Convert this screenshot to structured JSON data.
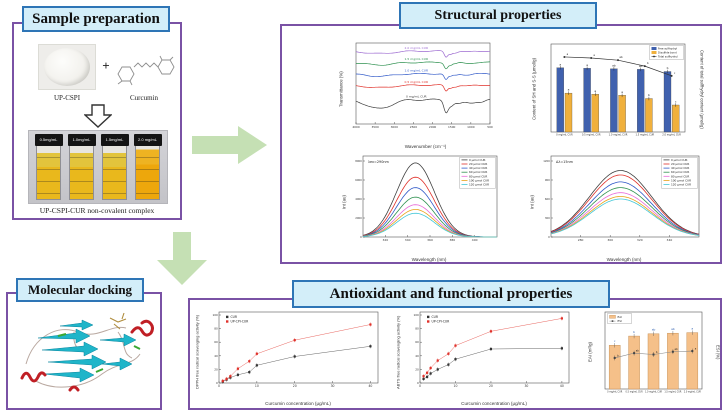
{
  "panels": {
    "sample_preparation": {
      "title": "Sample preparation",
      "powder_label": "UP-CSPI",
      "plus_sign": "+",
      "curcumin_label": "Curcumin",
      "vial_labels": [
        "0.5mg/mL",
        "1.0mg/mL",
        "1.5mg/mL",
        "2.0 mg/mL"
      ],
      "caption": "UP-CSPI-CUR non-covalent complex"
    },
    "structural_properties": {
      "title": "Structural properties"
    },
    "molecular_docking": {
      "title": "Molecular docking"
    },
    "antioxidant": {
      "title": "Antioxidant and functional properties"
    }
  },
  "colors": {
    "panel_border": "#7a52a5",
    "title_fill": "#d3eef9",
    "title_border": "#2e75b6",
    "arrow_green": "#c5e0b4"
  },
  "chart_data": [
    {
      "type": "line",
      "render": "ftir",
      "xlabel": "Wavenumber (cm⁻¹)",
      "ylabel": "Transmittance (%)",
      "xticks": [
        "4000",
        "3500",
        "3000",
        "2500",
        "2000",
        "1500",
        "1000",
        "500"
      ],
      "x_axis_reversed": true,
      "series": [
        {
          "name": "2.0 mg/mL CUR",
          "color": "#9d6bd1",
          "baseline_pos": 0.1
        },
        {
          "name": "1.5 mg/mL CUR",
          "color": "#2f9150",
          "baseline_pos": 0.24
        },
        {
          "name": "1.0 mg/mL CUR",
          "color": "#3059c8",
          "baseline_pos": 0.38
        },
        {
          "name": "0.5 mg/mL CUR",
          "color": "#e0312a",
          "baseline_pos": 0.52
        },
        {
          "name": "0 mg/mL CUR",
          "color": "#404040",
          "baseline_pos": 0.7
        }
      ]
    },
    {
      "type": "bar",
      "render": "gbar",
      "ylabel_left": "Content of SH and S-S (μmol/g)",
      "ylabel_right": "Content of total sulfhydryl content (μmol/g)",
      "categories": [
        "0 mg/mL CUR",
        "0.5 mg/mL CUR",
        "1.0 mg/mL CUR",
        "1.5 mg/mL CUR",
        "2.0 mg/mL CUR"
      ],
      "ylim_left": [
        0,
        15
      ],
      "ylim_right": [
        0,
        15
      ],
      "legend_position": "top-right",
      "series": [
        {
          "name": "Free sulfhydryl",
          "kind": "bar",
          "color": "#4061ae",
          "values": [
            11.9,
            11.8,
            11.7,
            11.6,
            11.2
          ],
          "letters": [
            "a",
            "a",
            "ab",
            "ab",
            "b"
          ]
        },
        {
          "name": "Disulfide bond",
          "kind": "bar",
          "color": "#f0b03c",
          "values": [
            7.2,
            7.0,
            6.8,
            6.2,
            5.0
          ],
          "letters": [
            "a",
            "a",
            "a",
            "b",
            "c"
          ]
        },
        {
          "name": "Total sulfhydryl",
          "kind": "line",
          "color": "#333333",
          "values": [
            13.9,
            13.7,
            13.3,
            12.2,
            10.4
          ],
          "letters": [
            "a",
            "a",
            "ab",
            "b",
            "c"
          ]
        }
      ]
    },
    {
      "type": "line",
      "render": "gauss",
      "annotation": "λex=290nm",
      "xlabel": "Wavelength (nm)",
      "ylabel": "Int (au)",
      "xlim": [
        300,
        420
      ],
      "xticks": [
        320,
        340,
        360,
        380,
        400
      ],
      "ylim": [
        0,
        8000
      ],
      "yticks": [
        0,
        2000,
        4000,
        6000,
        8000
      ],
      "peak_center": 347,
      "peak_width": 17,
      "legend_position": "top-right",
      "series": [
        {
          "name": "0 μmol CUR",
          "color": "#404040",
          "peak": 7800
        },
        {
          "name": "20 μmol CUR",
          "color": "#e0312a",
          "peak": 6300
        },
        {
          "name": "40 μmol CUR",
          "color": "#3059c8",
          "peak": 5200
        },
        {
          "name": "60 μmol CUR",
          "color": "#2f9150",
          "peak": 4200
        },
        {
          "name": "80 μmol CUR",
          "color": "#e86bd8",
          "peak": 3400
        },
        {
          "name": "100 μmol CUR",
          "color": "#e8a21a",
          "peak": 2900
        },
        {
          "name": "120 μmol CUR",
          "color": "#45c8d8",
          "peak": 2500
        }
      ]
    },
    {
      "type": "line",
      "render": "gauss",
      "annotation": "Δλ=15nm",
      "xlabel": "Wavelength (nm)",
      "ylabel": "Int (au)",
      "xlim": [
        260,
        360
      ],
      "xticks": [
        280,
        300,
        320,
        340
      ],
      "ylim": [
        0,
        1200
      ],
      "yticks": [
        0,
        300,
        600,
        900,
        1200
      ],
      "peak_center": 307,
      "peak_width": 21,
      "legend_position": "top-right",
      "series": [
        {
          "name": "0 μmol CUR",
          "color": "#404040",
          "peak": 1050
        },
        {
          "name": "20 μmol CUR",
          "color": "#e0312a",
          "peak": 980
        },
        {
          "name": "40 μmol CUR",
          "color": "#3059c8",
          "peak": 870
        },
        {
          "name": "60 μmol CUR",
          "color": "#2f9150",
          "peak": 780
        },
        {
          "name": "80 μmol CUR",
          "color": "#e86bd8",
          "peak": 700
        },
        {
          "name": "100 μmol CUR",
          "color": "#e8a21a",
          "peak": 640
        },
        {
          "name": "120 μmol CUR",
          "color": "#45c8d8",
          "peak": 600
        }
      ]
    },
    {
      "type": "scatter",
      "render": "scatter",
      "xlabel": "Curcumin concentration (μg/mL)",
      "ylabel": "DPPH free radical scavenging activity (%)",
      "xlim": [
        0,
        42
      ],
      "xticks": [
        0,
        10,
        20,
        30,
        40
      ],
      "ylim": [
        0,
        100
      ],
      "yticks": [
        0,
        20,
        40,
        60,
        80,
        100
      ],
      "x": [
        1,
        2,
        3,
        5,
        8,
        10,
        20,
        40
      ],
      "legend_position": "top-left",
      "series": [
        {
          "name": "CUR",
          "color": "#333333",
          "values": [
            2,
            5,
            8,
            12,
            16,
            26,
            39,
            54
          ]
        },
        {
          "name": "UP-CPI-CUR",
          "color": "#e0312a",
          "values": [
            3,
            6,
            10,
            21,
            32,
            43,
            63,
            86
          ]
        }
      ]
    },
    {
      "type": "scatter",
      "render": "scatter",
      "xlabel": "Curcumin concentration (μg/mL)",
      "ylabel": "ABTS free radical scavenging activity (%)",
      "xlim": [
        0,
        42
      ],
      "xticks": [
        0,
        10,
        20,
        30,
        40
      ],
      "ylim": [
        0,
        100
      ],
      "yticks": [
        0,
        20,
        40,
        60,
        80,
        100
      ],
      "x": [
        1,
        2,
        3,
        5,
        8,
        10,
        20,
        40
      ],
      "legend_position": "top-left",
      "series": [
        {
          "name": "CUR",
          "color": "#333333",
          "values": [
            6,
            9,
            14,
            20,
            27,
            35,
            50,
            51
          ]
        },
        {
          "name": "UP-CPI-CUR",
          "color": "#e0312a",
          "values": [
            10,
            15,
            22,
            33,
            43,
            55,
            76,
            95
          ]
        }
      ]
    },
    {
      "type": "bar",
      "render": "barline",
      "ylabel_left": "EAI (m²/g)",
      "ylabel_right": "ESI (%)",
      "categories": [
        "0 mg/mL CUR",
        "0.5 mg/mL CUR",
        "1.0 mg/mL CUR",
        "1.5 mg/mL CUR",
        "2.0 mg/mL CUR"
      ],
      "ylim_left": [
        0,
        6
      ],
      "ylim_right": [
        0,
        100
      ],
      "legend_position": "top-left",
      "series": [
        {
          "name": "EAI",
          "kind": "bar",
          "color": "#f5c089",
          "values": [
            3.8,
            4.6,
            4.8,
            4.85,
            4.9
          ],
          "letters": [
            "c",
            "b",
            "ab",
            "ab",
            "a"
          ]
        },
        {
          "name": "ESI",
          "kind": "line",
          "color": "#444444",
          "values": [
            45,
            52,
            50,
            54,
            55
          ],
          "letters": [
            "b",
            "ab",
            "b",
            "ab",
            "a"
          ]
        }
      ]
    }
  ]
}
